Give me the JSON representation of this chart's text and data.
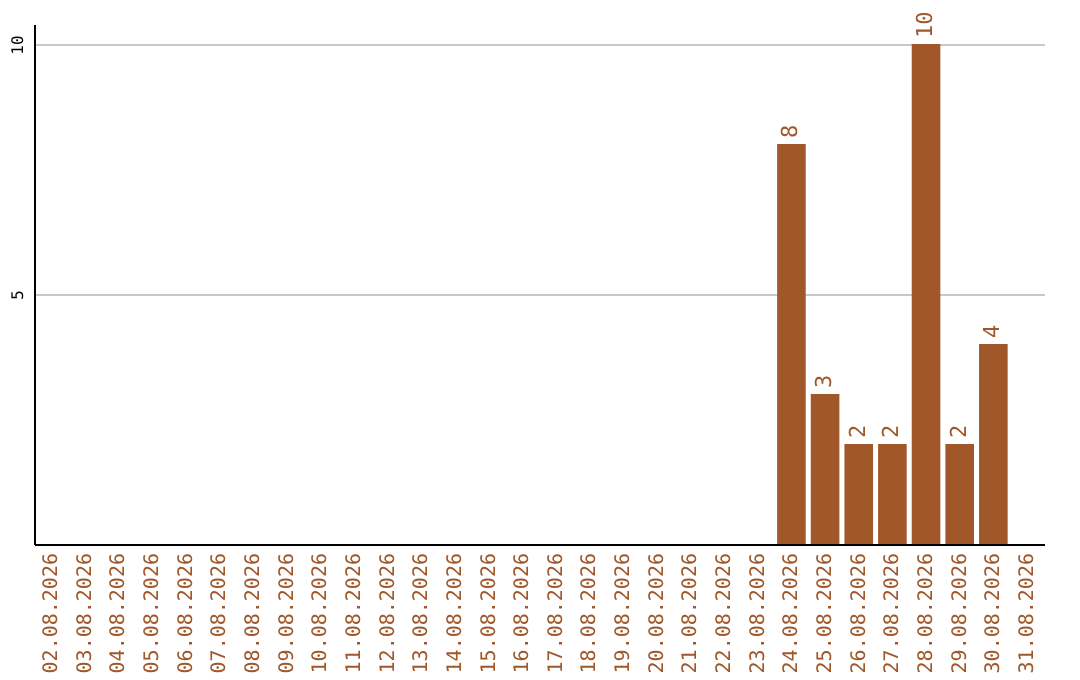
{
  "chart_data": {
    "type": "bar",
    "categories": [
      "02.08.2026",
      "03.08.2026",
      "04.08.2026",
      "05.08.2026",
      "06.08.2026",
      "07.08.2026",
      "08.08.2026",
      "09.08.2026",
      "10.08.2026",
      "11.08.2026",
      "12.08.2026",
      "13.08.2026",
      "14.08.2026",
      "15.08.2026",
      "16.08.2026",
      "17.08.2026",
      "18.08.2026",
      "19.08.2026",
      "20.08.2026",
      "21.08.2026",
      "22.08.2026",
      "23.08.2026",
      "24.08.2026",
      "25.08.2026",
      "26.08.2026",
      "27.08.2026",
      "28.08.2026",
      "29.08.2026",
      "30.08.2026",
      "31.08.2026"
    ],
    "values": [
      null,
      null,
      null,
      null,
      null,
      null,
      null,
      null,
      null,
      null,
      null,
      null,
      null,
      null,
      null,
      null,
      null,
      null,
      null,
      null,
      null,
      null,
      8,
      3,
      2,
      2,
      10,
      2,
      4,
      null
    ],
    "color": "#a0572a",
    "ylim": [
      0,
      10.4
    ],
    "yticks": [
      5,
      10
    ],
    "grid": "y",
    "data_labels": true
  }
}
